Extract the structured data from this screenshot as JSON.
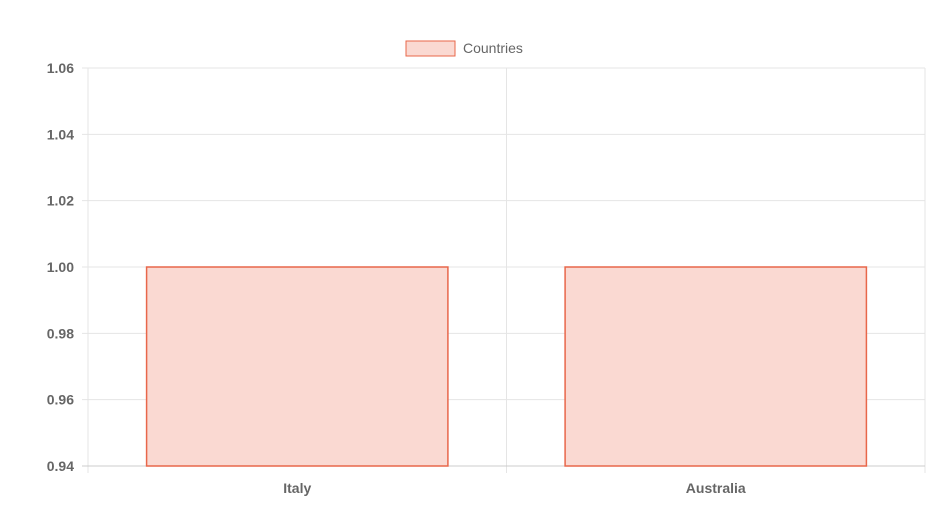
{
  "chart_data": {
    "type": "bar",
    "categories": [
      "Italy",
      "Australia"
    ],
    "series": [
      {
        "name": "Countries",
        "values": [
          1,
          1
        ]
      }
    ],
    "ylim": [
      0.94,
      1.06
    ],
    "yticks": [
      "1.06",
      "1.04",
      "1.02",
      "1.00",
      "0.98",
      "0.96",
      "0.94"
    ],
    "grid": true,
    "legend_position": "top-center",
    "colors": {
      "bar_fill": "#fad9d2",
      "bar_stroke": "#e8674a",
      "grid": "#e5e5e5",
      "axis": "#cccccc",
      "text": "#666666"
    }
  }
}
